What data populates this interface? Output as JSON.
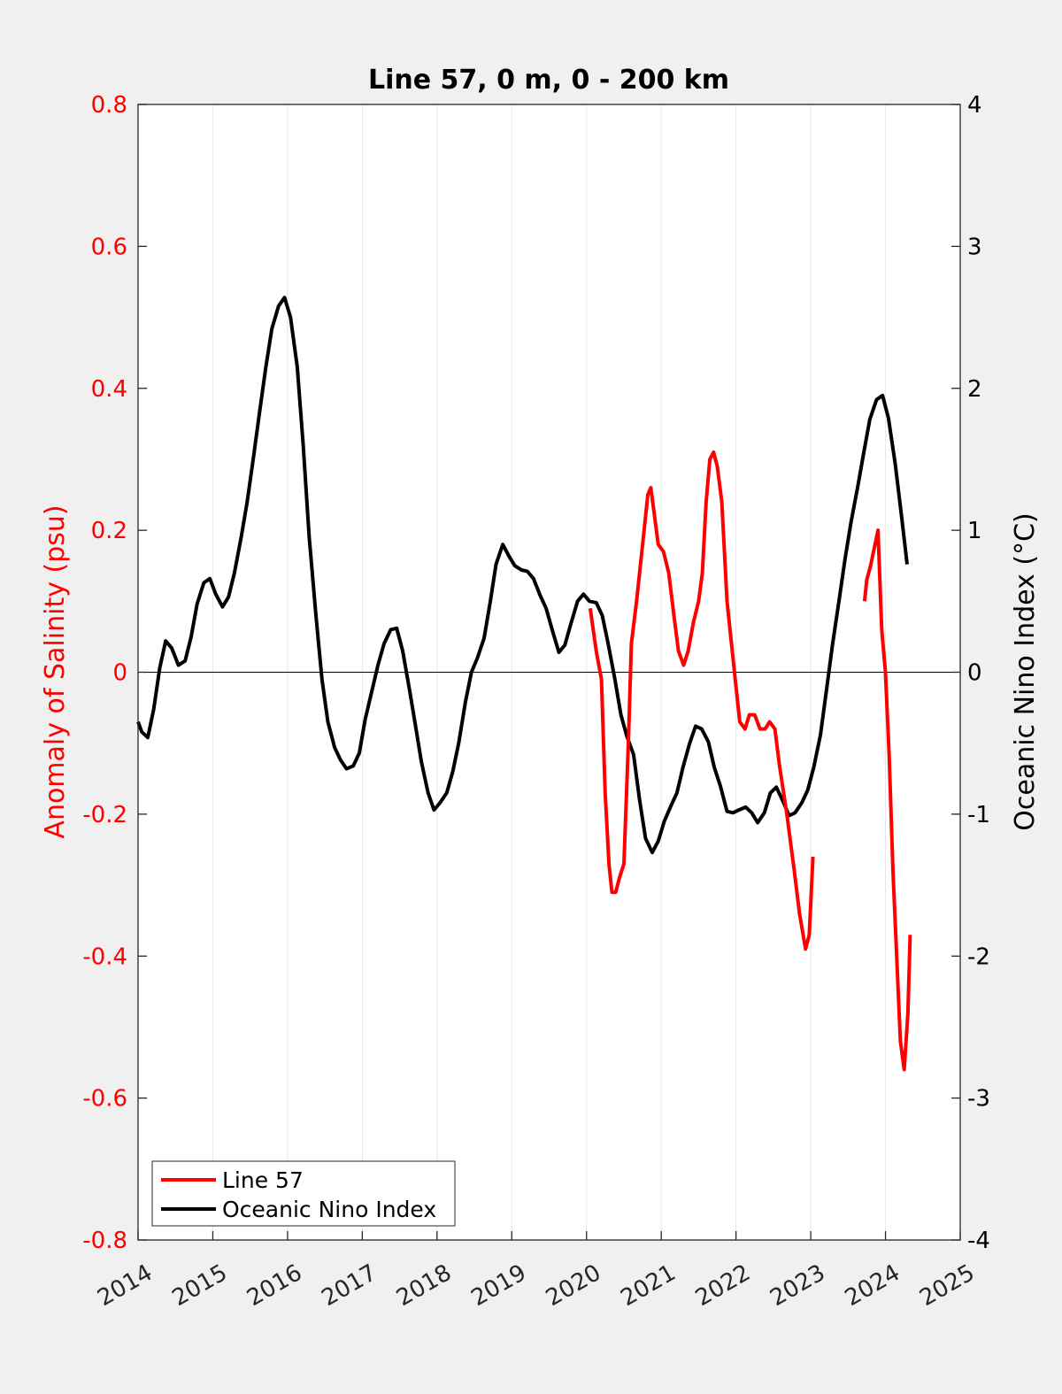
{
  "chart_data": {
    "type": "line",
    "title": "Line 57, 0 m, 0 - 200 km",
    "ylabel_left": "Anomaly of Salinity (psu)",
    "ylabel_right": "Oceanic Nino Index (°C)",
    "xlim": [
      2014,
      2025
    ],
    "ylim_left": [
      -0.8,
      0.8
    ],
    "ylim_right": [
      -4,
      4
    ],
    "x_ticks": [
      2014,
      2015,
      2016,
      2017,
      2018,
      2019,
      2020,
      2021,
      2022,
      2023,
      2024,
      2025
    ],
    "x_tick_labels": [
      "2014",
      "2015",
      "2016",
      "2017",
      "2018",
      "2019",
      "2020",
      "2021",
      "2022",
      "2023",
      "2024",
      "2025"
    ],
    "y_left_ticks": [
      0.8,
      0.6,
      0.4,
      0.2,
      0,
      -0.2,
      -0.4,
      -0.6,
      -0.8
    ],
    "y_left_tick_labels": [
      "0.8",
      "0.6",
      "0.4",
      "0.2",
      "0",
      "-0.2",
      "-0.4",
      "-0.6",
      "-0.8"
    ],
    "y_right_ticks": [
      4,
      3,
      2,
      1,
      0,
      -1,
      -2,
      -3,
      -4
    ],
    "y_right_tick_labels": [
      "4",
      "3",
      "2",
      "1",
      "0",
      "-1",
      "-2",
      "-3",
      "-4"
    ],
    "grid": "vertical",
    "zero_line": true,
    "legend_placement": "bottom-left",
    "colors": {
      "line57": "#ff0000",
      "oni": "#000000",
      "left_axis": "#ff0000",
      "right_axis": "#000000"
    },
    "series": [
      {
        "name": "Line 57",
        "axis": "left",
        "color": "#ff0000",
        "segments": [
          [
            [
              2020.05,
              0.09
            ],
            [
              2020.13,
              0.03
            ],
            [
              2020.2,
              -0.01
            ],
            [
              2020.25,
              -0.17
            ],
            [
              2020.3,
              -0.27
            ],
            [
              2020.34,
              -0.31
            ],
            [
              2020.39,
              -0.31
            ],
            [
              2020.44,
              -0.29
            ],
            [
              2020.5,
              -0.27
            ],
            [
              2020.56,
              -0.1
            ],
            [
              2020.6,
              0.04
            ],
            [
              2020.67,
              0.1
            ],
            [
              2020.75,
              0.18
            ],
            [
              2020.82,
              0.25
            ],
            [
              2020.86,
              0.26
            ],
            [
              2020.91,
              0.22
            ],
            [
              2020.96,
              0.18
            ],
            [
              2021.03,
              0.17
            ],
            [
              2021.1,
              0.14
            ],
            [
              2021.17,
              0.08
            ],
            [
              2021.23,
              0.03
            ],
            [
              2021.3,
              0.01
            ],
            [
              2021.36,
              0.03
            ],
            [
              2021.43,
              0.07
            ],
            [
              2021.5,
              0.1
            ],
            [
              2021.55,
              0.14
            ],
            [
              2021.6,
              0.24
            ],
            [
              2021.65,
              0.3
            ],
            [
              2021.7,
              0.31
            ],
            [
              2021.75,
              0.29
            ],
            [
              2021.81,
              0.24
            ],
            [
              2021.88,
              0.1
            ],
            [
              2021.95,
              0.03
            ],
            [
              2022.0,
              -0.02
            ],
            [
              2022.05,
              -0.07
            ],
            [
              2022.12,
              -0.08
            ],
            [
              2022.18,
              -0.06
            ],
            [
              2022.25,
              -0.06
            ],
            [
              2022.32,
              -0.08
            ],
            [
              2022.39,
              -0.08
            ],
            [
              2022.45,
              -0.07
            ],
            [
              2022.52,
              -0.08
            ],
            [
              2022.58,
              -0.13
            ],
            [
              2022.68,
              -0.2
            ],
            [
              2022.78,
              -0.28
            ],
            [
              2022.85,
              -0.34
            ],
            [
              2022.93,
              -0.39
            ],
            [
              2022.98,
              -0.37
            ],
            [
              2023.03,
              -0.26
            ]
          ],
          [
            [
              2023.72,
              0.1
            ],
            [
              2023.75,
              0.13
            ],
            [
              2023.8,
              0.15
            ],
            [
              2023.9,
              0.2
            ],
            [
              2023.95,
              0.06
            ],
            [
              2024.0,
              0.0
            ],
            [
              2024.05,
              -0.12
            ],
            [
              2024.1,
              -0.28
            ],
            [
              2024.15,
              -0.4
            ],
            [
              2024.2,
              -0.52
            ],
            [
              2024.25,
              -0.56
            ],
            [
              2024.3,
              -0.48
            ],
            [
              2024.33,
              -0.37
            ]
          ]
        ]
      },
      {
        "name": "Oceanic Nino Index",
        "axis": "right",
        "color": "#000000",
        "points": [
          [
            2014.0,
            -0.35
          ],
          [
            2014.05,
            -0.42
          ],
          [
            2014.13,
            -0.46
          ],
          [
            2014.21,
            -0.26
          ],
          [
            2014.29,
            0.03
          ],
          [
            2014.37,
            0.22
          ],
          [
            2014.45,
            0.17
          ],
          [
            2014.54,
            0.05
          ],
          [
            2014.63,
            0.08
          ],
          [
            2014.71,
            0.25
          ],
          [
            2014.79,
            0.48
          ],
          [
            2014.88,
            0.63
          ],
          [
            2014.96,
            0.66
          ],
          [
            2015.04,
            0.55
          ],
          [
            2015.13,
            0.46
          ],
          [
            2015.21,
            0.53
          ],
          [
            2015.29,
            0.7
          ],
          [
            2015.38,
            0.95
          ],
          [
            2015.46,
            1.2
          ],
          [
            2015.54,
            1.5
          ],
          [
            2015.63,
            1.85
          ],
          [
            2015.71,
            2.15
          ],
          [
            2015.79,
            2.42
          ],
          [
            2015.88,
            2.58
          ],
          [
            2015.96,
            2.64
          ],
          [
            2016.04,
            2.5
          ],
          [
            2016.13,
            2.15
          ],
          [
            2016.21,
            1.6
          ],
          [
            2016.29,
            0.95
          ],
          [
            2016.38,
            0.4
          ],
          [
            2016.46,
            -0.05
          ],
          [
            2016.54,
            -0.35
          ],
          [
            2016.63,
            -0.53
          ],
          [
            2016.71,
            -0.62
          ],
          [
            2016.79,
            -0.68
          ],
          [
            2016.88,
            -0.66
          ],
          [
            2016.96,
            -0.57
          ],
          [
            2017.04,
            -0.33
          ],
          [
            2017.13,
            -0.13
          ],
          [
            2017.21,
            0.05
          ],
          [
            2017.29,
            0.2
          ],
          [
            2017.38,
            0.3
          ],
          [
            2017.46,
            0.31
          ],
          [
            2017.54,
            0.15
          ],
          [
            2017.63,
            -0.12
          ],
          [
            2017.71,
            -0.37
          ],
          [
            2017.79,
            -0.63
          ],
          [
            2017.88,
            -0.85
          ],
          [
            2017.96,
            -0.97
          ],
          [
            2018.04,
            -0.92
          ],
          [
            2018.13,
            -0.85
          ],
          [
            2018.21,
            -0.7
          ],
          [
            2018.29,
            -0.5
          ],
          [
            2018.38,
            -0.21
          ],
          [
            2018.46,
            0.0
          ],
          [
            2018.54,
            0.1
          ],
          [
            2018.63,
            0.24
          ],
          [
            2018.71,
            0.49
          ],
          [
            2018.79,
            0.76
          ],
          [
            2018.88,
            0.9
          ],
          [
            2018.96,
            0.82
          ],
          [
            2019.04,
            0.75
          ],
          [
            2019.13,
            0.72
          ],
          [
            2019.21,
            0.71
          ],
          [
            2019.29,
            0.66
          ],
          [
            2019.38,
            0.54
          ],
          [
            2019.46,
            0.45
          ],
          [
            2019.54,
            0.3
          ],
          [
            2019.63,
            0.14
          ],
          [
            2019.71,
            0.19
          ],
          [
            2019.79,
            0.34
          ],
          [
            2019.88,
            0.5
          ],
          [
            2019.96,
            0.55
          ],
          [
            2020.04,
            0.5
          ],
          [
            2020.13,
            0.49
          ],
          [
            2020.21,
            0.4
          ],
          [
            2020.29,
            0.2
          ],
          [
            2020.38,
            -0.05
          ],
          [
            2020.46,
            -0.3
          ],
          [
            2020.54,
            -0.45
          ],
          [
            2020.63,
            -0.58
          ],
          [
            2020.71,
            -0.9
          ],
          [
            2020.79,
            -1.17
          ],
          [
            2020.88,
            -1.27
          ],
          [
            2020.96,
            -1.19
          ],
          [
            2021.04,
            -1.05
          ],
          [
            2021.13,
            -0.94
          ],
          [
            2021.21,
            -0.85
          ],
          [
            2021.29,
            -0.67
          ],
          [
            2021.38,
            -0.5
          ],
          [
            2021.46,
            -0.38
          ],
          [
            2021.54,
            -0.4
          ],
          [
            2021.63,
            -0.49
          ],
          [
            2021.71,
            -0.67
          ],
          [
            2021.79,
            -0.8
          ],
          [
            2021.88,
            -0.98
          ],
          [
            2021.96,
            -0.99
          ],
          [
            2022.04,
            -0.97
          ],
          [
            2022.13,
            -0.95
          ],
          [
            2022.21,
            -0.99
          ],
          [
            2022.29,
            -1.06
          ],
          [
            2022.38,
            -0.99
          ],
          [
            2022.46,
            -0.85
          ],
          [
            2022.54,
            -0.81
          ],
          [
            2022.63,
            -0.91
          ],
          [
            2022.71,
            -1.01
          ],
          [
            2022.79,
            -0.99
          ],
          [
            2022.88,
            -0.92
          ],
          [
            2022.96,
            -0.83
          ],
          [
            2023.04,
            -0.67
          ],
          [
            2023.13,
            -0.44
          ],
          [
            2023.21,
            -0.13
          ],
          [
            2023.29,
            0.19
          ],
          [
            2023.38,
            0.51
          ],
          [
            2023.46,
            0.8
          ],
          [
            2023.54,
            1.06
          ],
          [
            2023.63,
            1.31
          ],
          [
            2023.71,
            1.55
          ],
          [
            2023.79,
            1.78
          ],
          [
            2023.88,
            1.92
          ],
          [
            2023.96,
            1.95
          ],
          [
            2024.04,
            1.79
          ],
          [
            2024.13,
            1.47
          ],
          [
            2024.21,
            1.12
          ],
          [
            2024.29,
            0.76
          ]
        ]
      }
    ]
  }
}
